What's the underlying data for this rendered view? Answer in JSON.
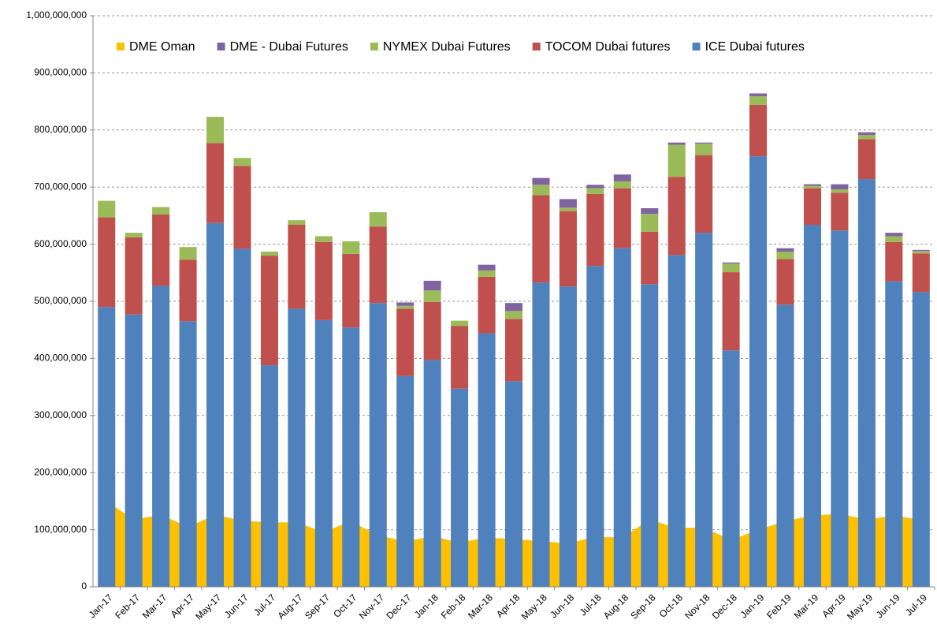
{
  "chart_data": {
    "type": "bar",
    "categories": [
      "Jan-17",
      "Feb-17",
      "Mar-17",
      "Apr-17",
      "May-17",
      "Jun-17",
      "Jul-17",
      "Aug-17",
      "Sep-17",
      "Oct-17",
      "Nov-17",
      "Dec-17",
      "Jan-18",
      "Feb-18",
      "Mar-18",
      "Apr-18",
      "May-18",
      "Jun-18",
      "Jul-18",
      "Aug-18",
      "Sep-18",
      "Oct-18",
      "Nov-18",
      "Dec-18",
      "Jan-19",
      "Feb-19",
      "Mar-19",
      "Apr-19",
      "May-19",
      "Jun-19",
      "Jul-19"
    ],
    "series": [
      {
        "name": "DME Oman",
        "color": "#ffc000",
        "type": "area",
        "values": [
          150000000,
          118000000,
          126000000,
          105000000,
          126000000,
          116000000,
          113000000,
          113000000,
          96000000,
          115000000,
          90000000,
          80000000,
          88000000,
          78000000,
          86000000,
          84000000,
          80000000,
          76000000,
          88000000,
          86000000,
          118000000,
          103000000,
          104000000,
          82000000,
          100000000,
          115000000,
          125000000,
          128000000,
          118000000,
          125000000,
          117000000
        ]
      },
      {
        "name": "DME - Dubai Futures",
        "color": "#8064a2",
        "type": "bar",
        "values": [
          0,
          0,
          0,
          0,
          0,
          0,
          0,
          0,
          0,
          0,
          0,
          6000000,
          17000000,
          0,
          10000000,
          14000000,
          12000000,
          15000000,
          6000000,
          12000000,
          10000000,
          4000000,
          2000000,
          2000000,
          5000000,
          6000000,
          3000000,
          9000000,
          5000000,
          6000000,
          2000000
        ]
      },
      {
        "name": "NYMEX Dubai Futures",
        "color": "#9bbb59",
        "type": "bar",
        "values": [
          29000000,
          8000000,
          13000000,
          22000000,
          46000000,
          14000000,
          7000000,
          8000000,
          10000000,
          22000000,
          25000000,
          5000000,
          20000000,
          9000000,
          11000000,
          14000000,
          18000000,
          6000000,
          10000000,
          12000000,
          31000000,
          56000000,
          20000000,
          15000000,
          15000000,
          13000000,
          4000000,
          6000000,
          7000000,
          10000000,
          4000000
        ]
      },
      {
        "name": "TOCOM Dubai futures",
        "color": "#c0504d",
        "type": "bar",
        "values": [
          157000000,
          135000000,
          125000000,
          108000000,
          140000000,
          145000000,
          192000000,
          147000000,
          137000000,
          129000000,
          134000000,
          118000000,
          102000000,
          110000000,
          99000000,
          109000000,
          153000000,
          132000000,
          126000000,
          105000000,
          92000000,
          137000000,
          136000000,
          137000000,
          90000000,
          80000000,
          64000000,
          66000000,
          70000000,
          69000000,
          68000000
        ]
      },
      {
        "name": "ICE Dubai futures",
        "color": "#4f81bd",
        "type": "bar",
        "values": [
          490000000,
          477000000,
          527000000,
          465000000,
          637000000,
          592000000,
          388000000,
          487000000,
          467000000,
          454000000,
          497000000,
          369000000,
          397000000,
          347000000,
          444000000,
          360000000,
          533000000,
          526000000,
          562000000,
          593000000,
          530000000,
          581000000,
          620000000,
          414000000,
          754000000,
          494000000,
          634000000,
          624000000,
          714000000,
          535000000,
          516000000
        ]
      }
    ],
    "ylim": [
      0,
      1000000000
    ],
    "yticks": [
      0,
      {
        "value": 100000000,
        "label": "100,000,000"
      },
      {
        "value": 200000000,
        "label": "200,000,000"
      },
      {
        "value": 300000000,
        "label": "300,000,000"
      },
      {
        "value": 400000000,
        "label": "400,000,000"
      },
      {
        "value": 500000000,
        "label": "500,000,000"
      },
      {
        "value": 600000000,
        "label": "600,000,000"
      },
      {
        "value": 700000000,
        "label": "700,000,000"
      },
      {
        "value": 800000000,
        "label": "800,000,000"
      },
      {
        "value": 900000000,
        "label": "900,000,000"
      },
      {
        "value": 1000000000,
        "label": "1,000,000,000"
      }
    ],
    "grid": true,
    "legend": "top"
  }
}
